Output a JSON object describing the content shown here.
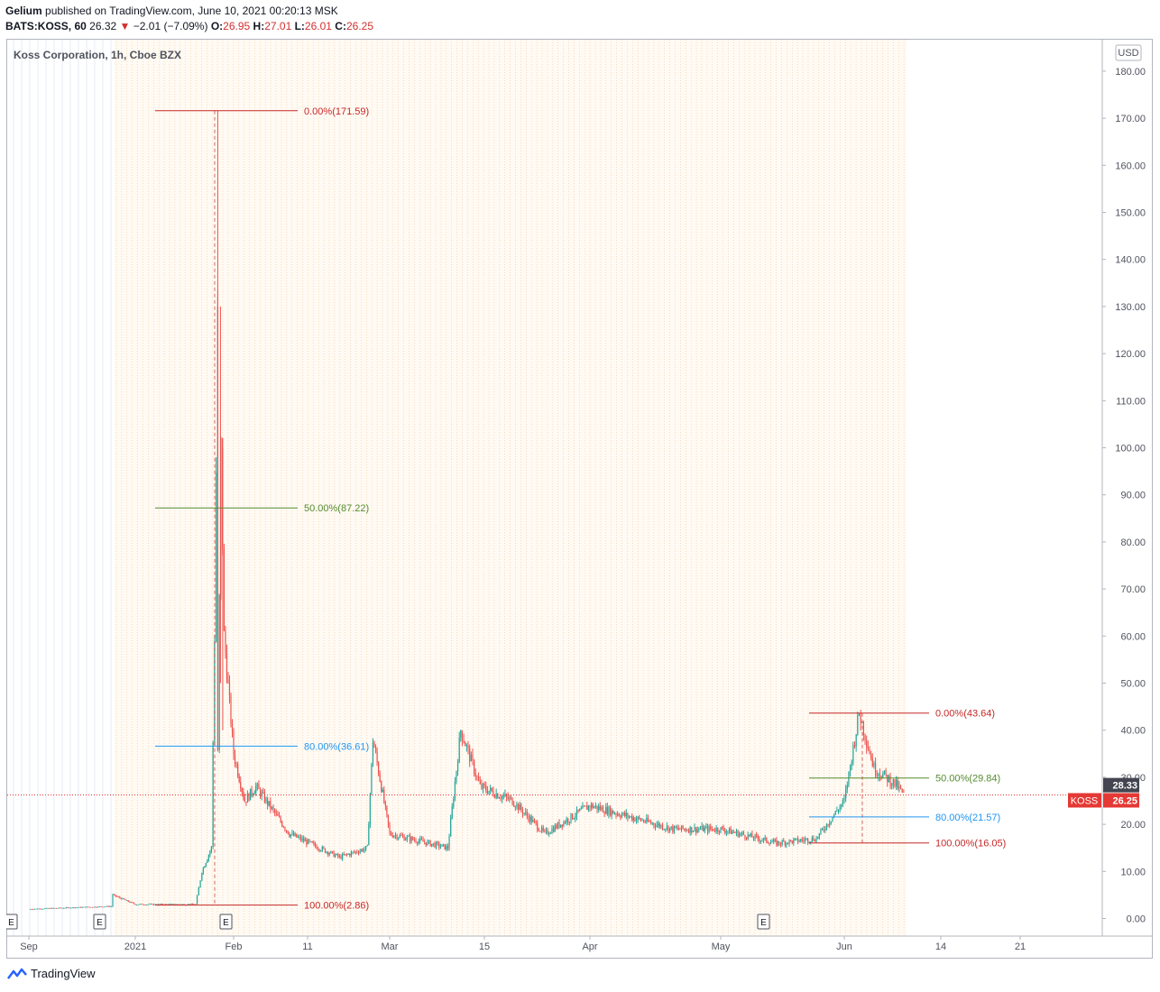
{
  "header": {
    "author": "Gelium",
    "published_text": "published on TradingView.com, June 10, 2021 00:20:13 MSK",
    "symbol": "BATS:KOSS, 60",
    "last": "26.32",
    "change_arrow": "▼",
    "change": "−2.01 (−7.09%)",
    "o_label": "O:",
    "o_val": "26.95",
    "h_label": "H:",
    "h_val": "27.01",
    "l_label": "L:",
    "l_val": "26.01",
    "c_label": "C:",
    "c_val": "26.25"
  },
  "chart_title": "Koss Corporation, 1h, Cboe BZX",
  "currency_button": "USD",
  "footer": {
    "brand": "TradingView"
  },
  "colors": {
    "up": "#26a69a",
    "down": "#ef5350",
    "fib_red": "#c62828",
    "fib_green": "#558b2f",
    "fib_blue": "#2196f3",
    "price_tag": "#e53935"
  },
  "chart_data": {
    "type": "candlestick",
    "title": "Koss Corporation, 1h, Cboe BZX",
    "y_axis_ticks": [
      "0.00",
      "10.00",
      "20.00",
      "30.00",
      "40.00",
      "50.00",
      "60.00",
      "70.00",
      "80.00",
      "90.00",
      "100.00",
      "110.00",
      "120.00",
      "130.00",
      "140.00",
      "150.00",
      "160.00",
      "170.00",
      "180.00"
    ],
    "ylim": [
      0,
      180
    ],
    "x_axis_ticks": [
      "Sep",
      "2021",
      "Feb",
      "11",
      "Mar",
      "15",
      "Apr",
      "May",
      "Jun",
      "14",
      "21"
    ],
    "price_labels": [
      {
        "text": "28.33",
        "value": 28.33,
        "style": "dark"
      },
      {
        "text": "26.25",
        "value": 26.25,
        "style": "red",
        "symbol": "KOSS"
      }
    ],
    "earnings_markers": [
      "E",
      "E",
      "E",
      "E"
    ],
    "fib_retracements": [
      {
        "name": "first",
        "levels": [
          {
            "label": "0.00%(171.59)",
            "value": 171.59,
            "color": "red"
          },
          {
            "label": "50.00%(87.22)",
            "value": 87.22,
            "color": "green"
          },
          {
            "label": "80.00%(36.61)",
            "value": 36.61,
            "color": "blue"
          },
          {
            "label": "100.00%(2.86)",
            "value": 2.86,
            "color": "red"
          }
        ]
      },
      {
        "name": "second",
        "levels": [
          {
            "label": "0.00%(43.64)",
            "value": 43.64,
            "color": "red"
          },
          {
            "label": "50.00%(29.84)",
            "value": 29.84,
            "color": "green"
          },
          {
            "label": "80.00%(21.57)",
            "value": 21.57,
            "color": "blue"
          },
          {
            "label": "100.00%(16.05)",
            "value": 16.05,
            "color": "red"
          }
        ]
      }
    ],
    "price_path": [
      [
        "Sep",
        2.0
      ],
      [
        "Dec",
        2.6
      ],
      [
        "Dec",
        5.0
      ],
      [
        "2021",
        3.0
      ],
      [
        "Jan 20",
        3.0
      ],
      [
        "Jan 22",
        10.0
      ],
      [
        "Jan 25",
        15.0
      ],
      [
        "Jan 26",
        60.0
      ],
      [
        "Jan 27",
        130.0
      ],
      [
        "Jan 27",
        35.0
      ],
      [
        "Jan 28",
        100.0
      ],
      [
        "Jan 29",
        60.0
      ],
      [
        "Feb 1",
        35.0
      ],
      [
        "Feb 3",
        25.0
      ],
      [
        "Feb 5",
        28.0
      ],
      [
        "Feb 11",
        18.0
      ],
      [
        "Feb 20",
        13.0
      ],
      [
        "Feb 25",
        15.0
      ],
      [
        "Feb 26",
        38.0
      ],
      [
        "Mar 1",
        18.0
      ],
      [
        "Mar 10",
        15.0
      ],
      [
        "Mar 12",
        40.0
      ],
      [
        "Mar 15",
        28.0
      ],
      [
        "Mar 20",
        25.0
      ],
      [
        "Mar 25",
        18.0
      ],
      [
        "Apr",
        24.0
      ],
      [
        "Apr 20",
        19.0
      ],
      [
        "May",
        19.0
      ],
      [
        "May 15",
        16.0
      ],
      [
        "May 25",
        17.0
      ],
      [
        "Jun",
        25.0
      ],
      [
        "Jun 3",
        43.64
      ],
      [
        "Jun 5",
        32.0
      ],
      [
        "Jun 8",
        28.33
      ],
      [
        "Jun 9",
        26.25
      ]
    ]
  }
}
